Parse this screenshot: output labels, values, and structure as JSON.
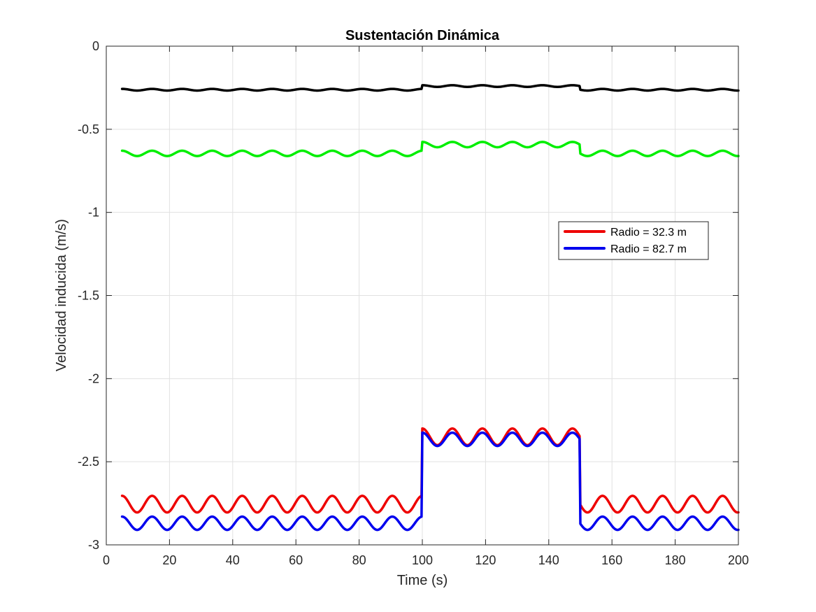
{
  "chart_data": {
    "type": "line",
    "title": "Sustentación Dinámica",
    "xlabel": "Time (s)",
    "ylabel": "Velocidad inducida (m/s)",
    "xlim": [
      0,
      200
    ],
    "ylim": [
      -3,
      0
    ],
    "x_ticks": [
      "0",
      "20",
      "40",
      "60",
      "80",
      "100",
      "120",
      "140",
      "160",
      "180",
      "200"
    ],
    "y_ticks": [
      "0",
      "-0.5",
      "-1",
      "-1.5",
      "-2",
      "-2.5",
      "-3"
    ],
    "grid": true,
    "legend_position": "right, upper-middle",
    "series": [
      {
        "name": "",
        "color": "#000000",
        "x_range": [
          5,
          200
        ],
        "base_level": -0.262,
        "oscillation_period_s": 9.5,
        "oscillation_amplitude": 0.005,
        "step": {
          "from": 100,
          "to": 150,
          "level": -0.24
        }
      },
      {
        "name": "",
        "color": "#00ee00",
        "x_range": [
          5,
          200
        ],
        "base_level": -0.645,
        "oscillation_period_s": 9.5,
        "oscillation_amplitude": 0.016,
        "step": {
          "from": 100,
          "to": 150,
          "level": -0.592
        }
      },
      {
        "name": "Radio = 32.3 m",
        "color": "#ee0000",
        "x_range": [
          5,
          200
        ],
        "base_level": -2.755,
        "oscillation_period_s": 9.5,
        "oscillation_amplitude": 0.05,
        "step": {
          "from": 100,
          "to": 150,
          "level": -2.35
        }
      },
      {
        "name": "Radio = 82.7 m",
        "color": "#0000ee",
        "x_range": [
          5,
          200
        ],
        "base_level": -2.87,
        "oscillation_period_s": 9.5,
        "oscillation_amplitude": 0.04,
        "step": {
          "from": 100,
          "to": 150,
          "level": -2.365
        }
      }
    ]
  }
}
